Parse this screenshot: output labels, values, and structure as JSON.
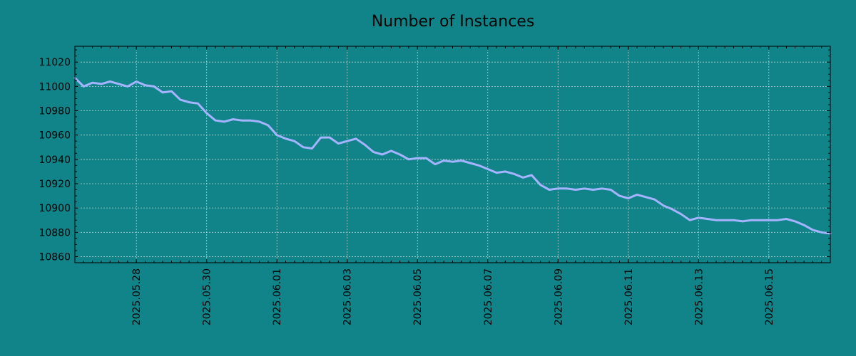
{
  "chart_data": {
    "type": "line",
    "title": "Number of Instances",
    "xlabel": "",
    "ylabel": "",
    "x_tick_labels": [
      "2025.05.28",
      "2025.05.30",
      "2025.06.01",
      "2025.06.03",
      "2025.06.05",
      "2025.06.07",
      "2025.06.09",
      "2025.06.11",
      "2025.06.13",
      "2025.06.15"
    ],
    "y_tick_labels": [
      "10860",
      "10880",
      "10900",
      "10920",
      "10940",
      "10960",
      "10980",
      "11000",
      "11020"
    ],
    "xlim": [
      "2025-05-26 06:00",
      "2025-06-16 18:00"
    ],
    "ylim": [
      10855,
      11033
    ],
    "grid": true,
    "legend": "none",
    "colors": {
      "background": "#108488",
      "line": "#a4b4ff",
      "grid": "#b8d0d0",
      "axis": "#000000"
    },
    "series": [
      {
        "x": [
          "2025-05-26 06:00",
          "2025-05-26 12:00",
          "2025-05-26 18:00",
          "2025-05-27 00:00",
          "2025-05-27 06:00",
          "2025-05-27 12:00",
          "2025-05-27 18:00",
          "2025-05-28 00:00",
          "2025-05-28 06:00",
          "2025-05-28 12:00",
          "2025-05-28 18:00",
          "2025-05-29 00:00",
          "2025-05-29 06:00",
          "2025-05-29 12:00",
          "2025-05-29 18:00",
          "2025-05-30 00:00",
          "2025-05-30 06:00",
          "2025-05-30 12:00",
          "2025-05-30 18:00",
          "2025-05-31 00:00",
          "2025-05-31 06:00",
          "2025-05-31 12:00",
          "2025-05-31 18:00",
          "2025-06-01 00:00",
          "2025-06-01 06:00",
          "2025-06-01 12:00",
          "2025-06-01 18:00",
          "2025-06-02 00:00",
          "2025-06-02 06:00",
          "2025-06-02 12:00",
          "2025-06-02 18:00",
          "2025-06-03 00:00",
          "2025-06-03 06:00",
          "2025-06-03 12:00",
          "2025-06-03 18:00",
          "2025-06-04 00:00",
          "2025-06-04 06:00",
          "2025-06-04 12:00",
          "2025-06-04 18:00",
          "2025-06-05 00:00",
          "2025-06-05 06:00",
          "2025-06-05 12:00",
          "2025-06-05 18:00",
          "2025-06-06 00:00",
          "2025-06-06 06:00",
          "2025-06-06 12:00",
          "2025-06-06 18:00",
          "2025-06-07 00:00",
          "2025-06-07 06:00",
          "2025-06-07 12:00",
          "2025-06-07 18:00",
          "2025-06-08 00:00",
          "2025-06-08 06:00",
          "2025-06-08 12:00",
          "2025-06-08 18:00",
          "2025-06-09 00:00",
          "2025-06-09 06:00",
          "2025-06-09 12:00",
          "2025-06-09 18:00",
          "2025-06-10 00:00",
          "2025-06-10 06:00",
          "2025-06-10 12:00",
          "2025-06-10 18:00",
          "2025-06-11 00:00",
          "2025-06-11 06:00",
          "2025-06-11 12:00",
          "2025-06-11 18:00",
          "2025-06-12 00:00",
          "2025-06-12 06:00",
          "2025-06-12 12:00",
          "2025-06-12 18:00",
          "2025-06-13 00:00",
          "2025-06-13 06:00",
          "2025-06-13 12:00",
          "2025-06-13 18:00",
          "2025-06-14 00:00",
          "2025-06-14 06:00",
          "2025-06-14 12:00",
          "2025-06-14 18:00",
          "2025-06-15 00:00",
          "2025-06-15 06:00",
          "2025-06-15 12:00",
          "2025-06-15 18:00",
          "2025-06-16 00:00",
          "2025-06-16 06:00",
          "2025-06-16 12:00",
          "2025-06-16 18:00"
        ],
        "values": [
          11007,
          11000,
          11003,
          11002,
          11004,
          11002,
          11000,
          11004,
          11001,
          11000,
          10995,
          10996,
          10989,
          10987,
          10986,
          10978,
          10972,
          10971,
          10973,
          10972,
          10972,
          10971,
          10968,
          10960,
          10957,
          10955,
          10950,
          10949,
          10958,
          10958,
          10953,
          10955,
          10957,
          10952,
          10946,
          10944,
          10947,
          10944,
          10940,
          10941,
          10941,
          10936,
          10939,
          10938,
          10939,
          10937,
          10935,
          10932,
          10929,
          10930,
          10928,
          10925,
          10927,
          10919,
          10915,
          10916,
          10916,
          10915,
          10916,
          10915,
          10916,
          10915,
          10910,
          10908,
          10911,
          10909,
          10907,
          10902,
          10899,
          10895,
          10890,
          10892,
          10891,
          10890,
          10890,
          10890,
          10889,
          10890,
          10890,
          10890,
          10890,
          10891,
          10889,
          10886,
          10882,
          10880,
          10879
        ]
      }
    ]
  }
}
